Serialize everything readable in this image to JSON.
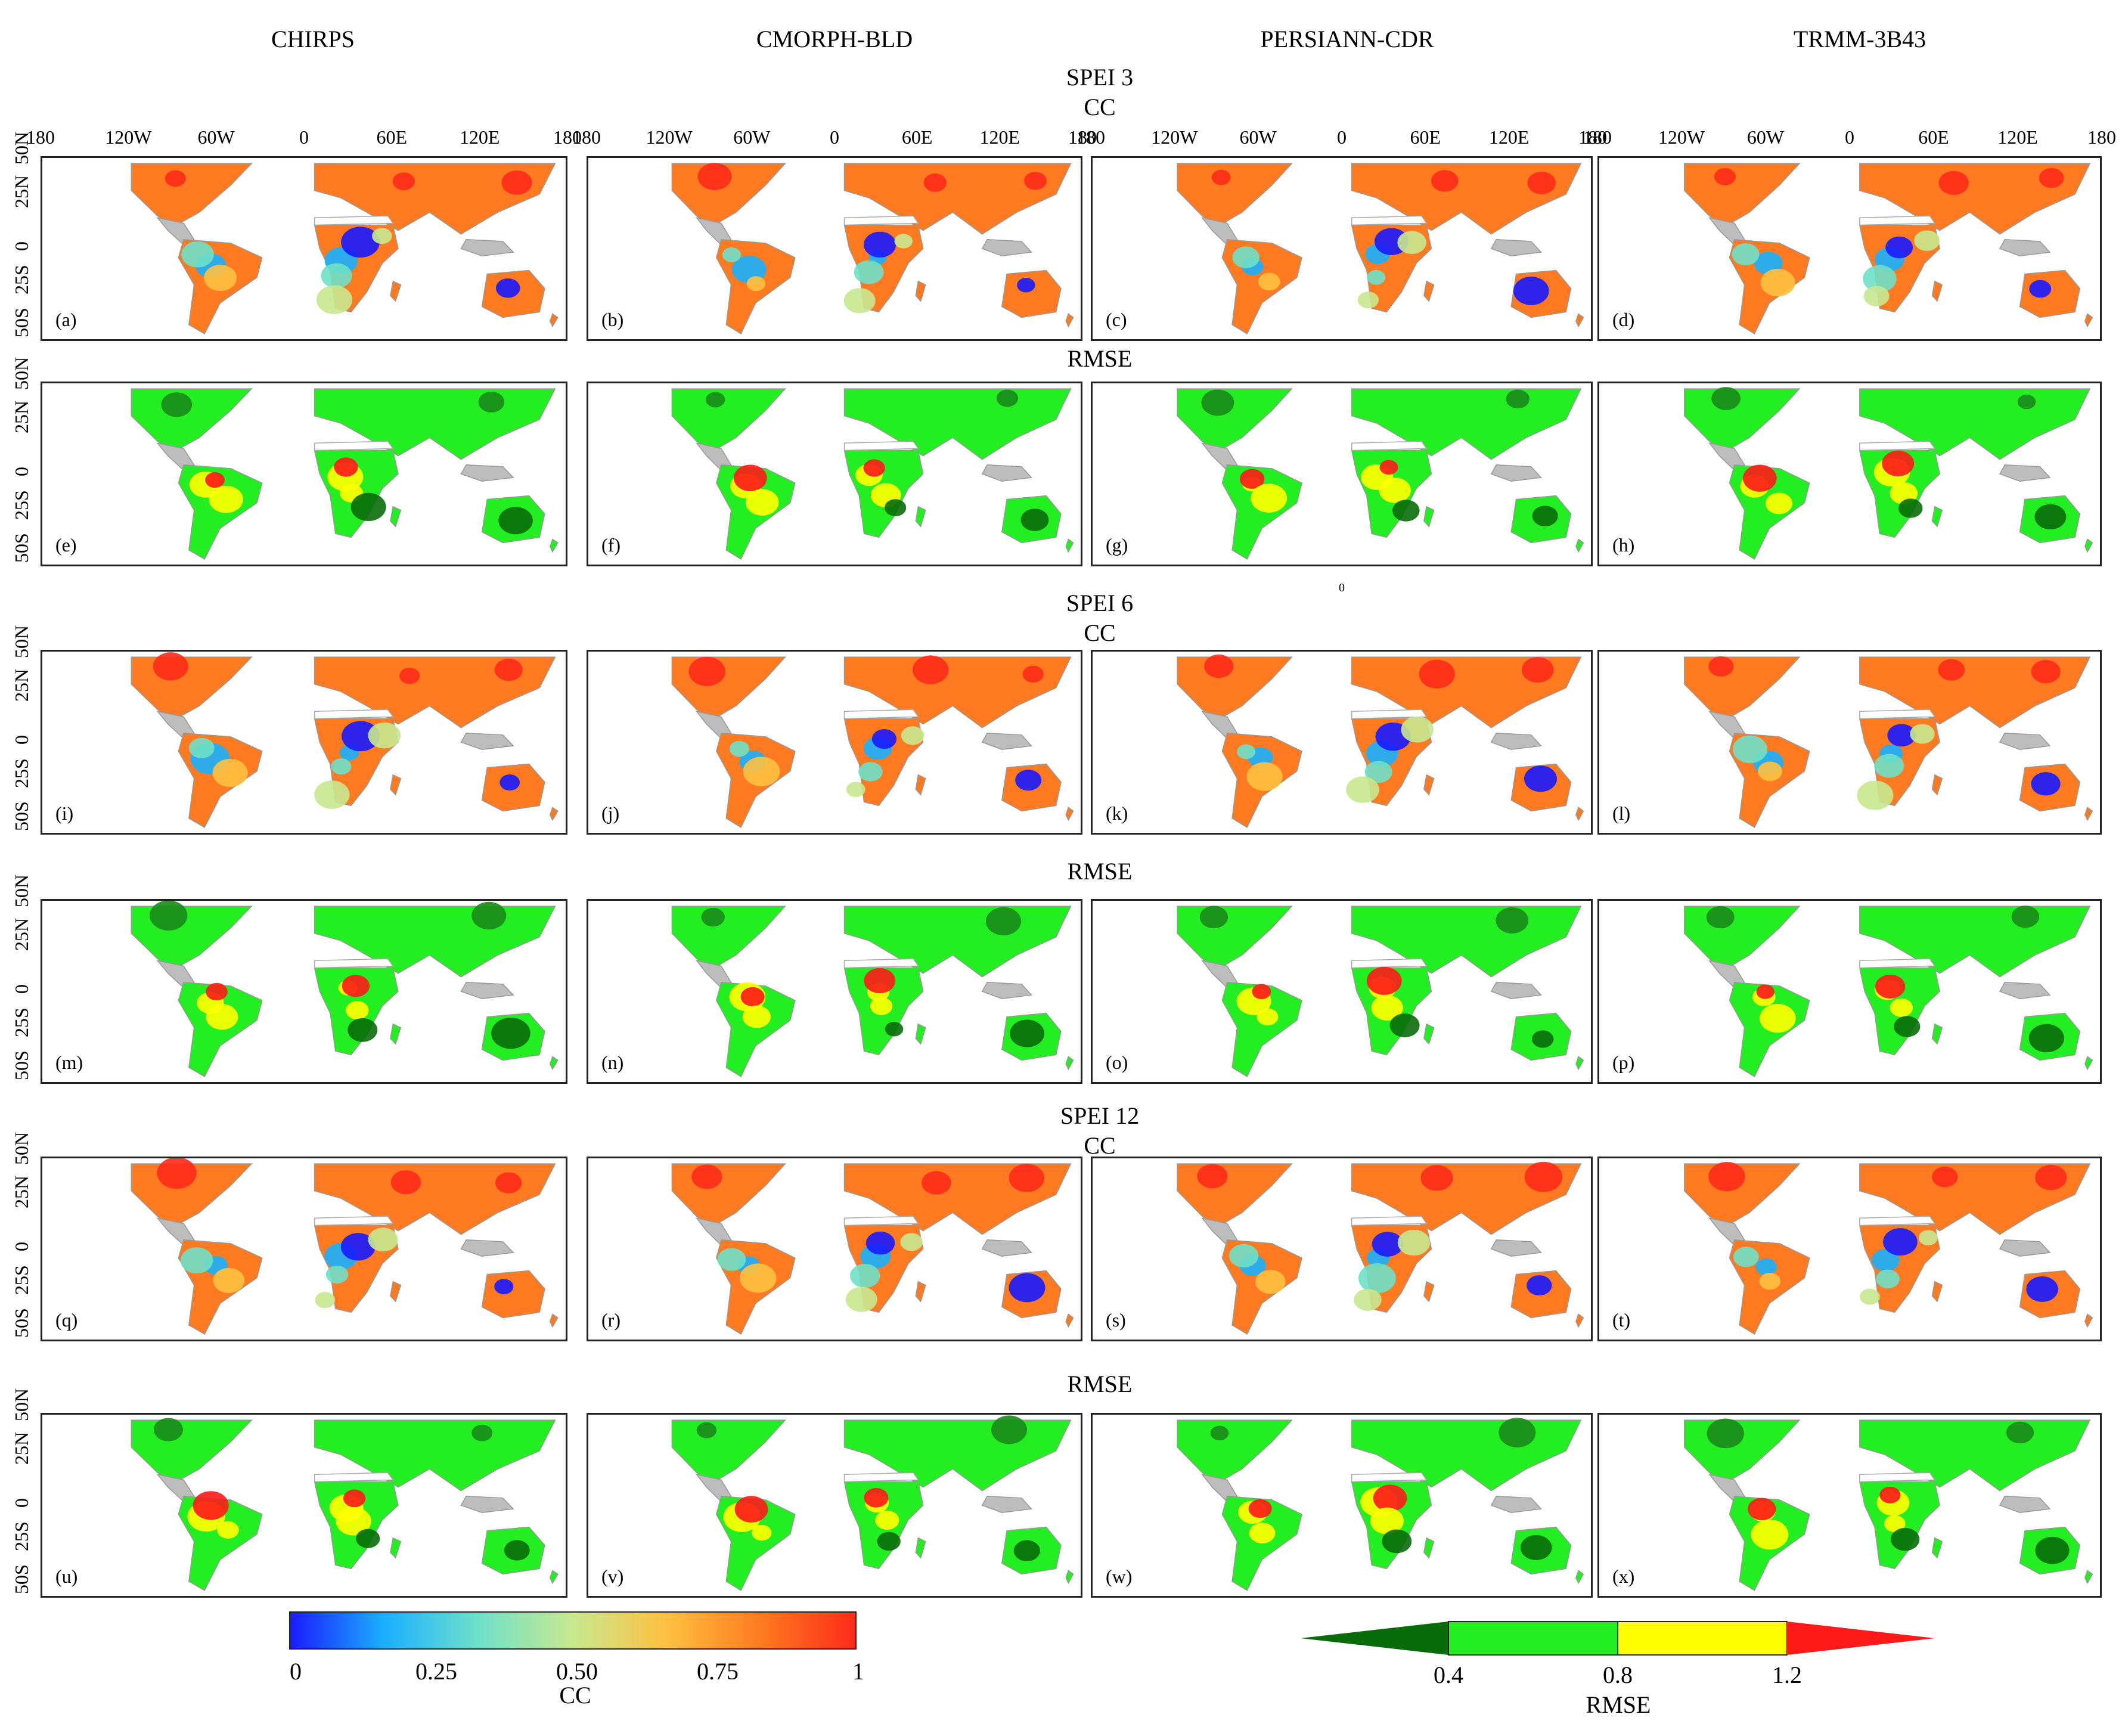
{
  "columns": [
    "CHIRPS",
    "CMORPH-BLD",
    "PERSIANN-CDR",
    "TRMM-3B43"
  ],
  "sections": [
    {
      "title": "SPEI 3",
      "rows": [
        {
          "metric": "CC",
          "labels": [
            "(a)",
            "(b)",
            "(c)",
            "(d)"
          ]
        },
        {
          "metric": "RMSE",
          "labels": [
            "(e)",
            "(f)",
            "(g)",
            "(h)"
          ]
        }
      ]
    },
    {
      "title": "SPEI 6",
      "rows": [
        {
          "metric": "CC",
          "labels": [
            "(i)",
            "(j)",
            "(k)",
            "(l)"
          ]
        },
        {
          "metric": "RMSE",
          "labels": [
            "(m)",
            "(n)",
            "(o)",
            "(p)"
          ]
        }
      ]
    },
    {
      "title": "SPEI 12",
      "rows": [
        {
          "metric": "CC",
          "labels": [
            "(q)",
            "(r)",
            "(s)",
            "(t)"
          ]
        },
        {
          "metric": "RMSE",
          "labels": [
            "(u)",
            "(v)",
            "(w)",
            "(x)"
          ]
        }
      ]
    }
  ],
  "lon_ticks": [
    "180",
    "120W",
    "60W",
    "0",
    "60E",
    "120E",
    "180"
  ],
  "lat_ticks": [
    "50S",
    "25S",
    "0",
    "25N",
    "50N"
  ],
  "stray_label": "0",
  "cc_colorbar": {
    "title": "CC",
    "ticks": [
      "0",
      "0.25",
      "0.50",
      "0.75",
      "1"
    ],
    "colors": [
      "#1a1aff",
      "#1ab0ff",
      "#6fe0c8",
      "#c8e890",
      "#ffc040",
      "#ff7a20",
      "#ff2a1a"
    ]
  },
  "rmse_colorbar": {
    "title": "RMSE",
    "ticks": [
      "0.4",
      "0.8",
      "1.2"
    ],
    "colors": {
      "below": "#0a6b0a",
      "0.4-0.8": "#22ee22",
      "0.8-1.2": "#ffff00",
      "above": "#ff1a1a"
    }
  },
  "palette": {
    "land_gray": "#bdbdbd",
    "dark_green": "#1a8a1a",
    "orange": "#ff7a20"
  }
}
